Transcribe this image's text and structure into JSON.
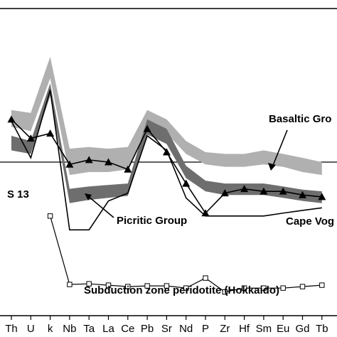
{
  "chart_data": {
    "type": "line",
    "title": "",
    "xlabel": "",
    "ylabel": "",
    "yscale": "log",
    "ylim": [
      0.1,
      100
    ],
    "reference_line": 1,
    "categories": [
      "Th",
      "U",
      "k",
      "Nb",
      "Ta",
      "La",
      "Ce",
      "Pb",
      "Sr",
      "Nd",
      "P",
      "Zr",
      "Hf",
      "Sm",
      "Eu",
      "Gd",
      "Tb"
    ],
    "x_tick_labels": [
      "Th",
      "U",
      "k",
      "Nb",
      "Ta",
      "La",
      "Ce",
      "Pb",
      "Sr",
      "Nd",
      "P",
      "Zr",
      "Hf",
      "Sm",
      "Eu",
      "Gd",
      "Tb"
    ],
    "bands": [
      {
        "name": "Basaltic Group",
        "color": "#b0b0b0",
        "upper": [
          3.2,
          3.0,
          10.5,
          1.35,
          1.4,
          1.35,
          1.4,
          3.2,
          2.6,
          1.6,
          1.25,
          1.2,
          1.2,
          1.3,
          1.2,
          1.1,
          1.0
        ],
        "lower": [
          2.2,
          2.0,
          6.5,
          0.75,
          0.8,
          0.8,
          0.85,
          2.2,
          1.9,
          1.2,
          0.95,
          0.9,
          0.9,
          0.95,
          0.9,
          0.8,
          0.75
        ]
      },
      {
        "name": "Picritic Group",
        "color": "#6e6e6e",
        "upper": [
          1.8,
          1.6,
          5.8,
          0.55,
          0.58,
          0.6,
          0.62,
          2.6,
          2.1,
          0.92,
          0.66,
          0.62,
          0.62,
          0.62,
          0.58,
          0.54,
          0.52
        ],
        "lower": [
          1.3,
          1.2,
          4.4,
          0.4,
          0.43,
          0.45,
          0.47,
          1.85,
          1.5,
          0.7,
          0.52,
          0.48,
          0.48,
          0.48,
          0.45,
          0.42,
          0.4
        ]
      }
    ],
    "series": [
      {
        "name": "S 13",
        "marker": "none",
        "values": [
          2.5,
          1.1,
          5.0,
          0.22,
          0.22,
          0.42,
          0.5,
          1.8,
          1.3,
          0.45,
          0.3,
          0.3,
          0.3,
          0.3,
          0.32,
          0.34,
          0.36
        ]
      },
      {
        "name": "Cape Vogel",
        "marker": "triangle",
        "values": [
          2.6,
          1.7,
          1.9,
          0.95,
          1.05,
          1.0,
          0.85,
          2.1,
          1.25,
          0.62,
          0.32,
          0.5,
          0.55,
          0.52,
          0.52,
          0.48,
          0.46
        ]
      },
      {
        "name": "Subduction zone peridotite (Hokkaido)",
        "marker": "square-open",
        "values": [
          null,
          null,
          0.3,
          0.065,
          0.066,
          0.064,
          0.062,
          0.063,
          0.063,
          0.06,
          0.075,
          0.055,
          0.06,
          0.06,
          0.06,
          0.062,
          0.064
        ]
      }
    ],
    "annotations": [
      {
        "text": "Basaltic Gro"
      },
      {
        "text": "Picritic Group"
      },
      {
        "text": "Cape Vog"
      },
      {
        "text": "S 13"
      },
      {
        "text": "Subduction zone peridotite (Hokkaido)"
      }
    ]
  }
}
